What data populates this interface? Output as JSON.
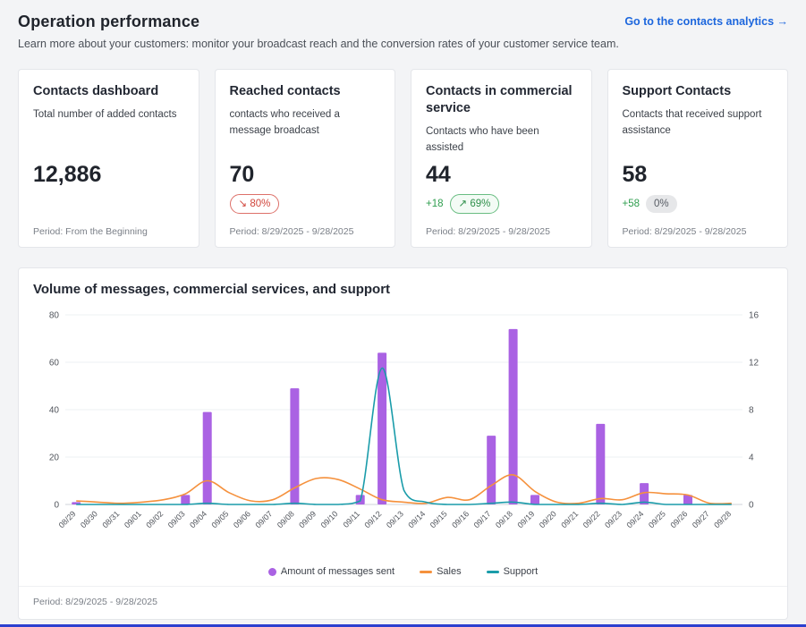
{
  "header": {
    "title": "Operation performance",
    "subtitle": "Learn more about your customers: monitor your broadcast reach and the conversion rates of your customer service team.",
    "link": "Go to the contacts analytics →"
  },
  "cards": [
    {
      "title": "Contacts dashboard",
      "description": "Total number of added contacts",
      "value": "12,886",
      "period": "Period: From the Beginning"
    },
    {
      "title": "Reached contacts",
      "description": "contacts who received a message broadcast",
      "value": "70",
      "badge": "↘ 80%",
      "period": "Period: 8/29/2025 - 9/28/2025"
    },
    {
      "title": "Contacts in commercial service",
      "description": "Contacts who have been assisted",
      "value": "44",
      "delta": "+18",
      "badge": "↗ 69%",
      "period": "Period: 8/29/2025 - 9/28/2025"
    },
    {
      "title": "Support Contacts",
      "description": "Contacts that received support assistance",
      "value": "58",
      "delta": "+58",
      "badge": "0%",
      "period": "Period: 8/29/2025 - 9/28/2025"
    }
  ],
  "chart_panel": {
    "title": "Volume of messages, commercial services, and support",
    "footer": "Period: 8/29/2025 - 9/28/2025"
  },
  "chart_data": {
    "type": "bar",
    "subtype": "combo-bar-line",
    "title": "Volume of messages, commercial services, and support",
    "categories": [
      "08/29",
      "08/30",
      "08/31",
      "09/01",
      "09/02",
      "09/03",
      "09/04",
      "09/05",
      "09/06",
      "09/07",
      "09/08",
      "09/09",
      "09/10",
      "09/11",
      "09/12",
      "09/13",
      "09/14",
      "09/15",
      "09/16",
      "09/17",
      "09/18",
      "09/19",
      "09/20",
      "09/21",
      "09/22",
      "09/23",
      "09/24",
      "09/25",
      "09/26",
      "09/27",
      "09/28"
    ],
    "series": [
      {
        "name": "Amount of messages sent",
        "type": "bar",
        "axis": "left",
        "color": "#aa62e3",
        "values": [
          1,
          0,
          0,
          0,
          0,
          4,
          39,
          0,
          0,
          0,
          49,
          0,
          0,
          4,
          64,
          0,
          0,
          0,
          0,
          29,
          74,
          4,
          0,
          0,
          34,
          0,
          9,
          0,
          4,
          0,
          0
        ]
      },
      {
        "name": "Sales",
        "type": "line",
        "axis": "right",
        "color": "#f5913d",
        "values": [
          0.3,
          0.2,
          0.1,
          0.2,
          0.4,
          0.9,
          2.0,
          1.0,
          0.3,
          0.4,
          1.4,
          2.2,
          2.1,
          1.3,
          0.4,
          0.2,
          0.1,
          0.6,
          0.4,
          1.6,
          2.5,
          1.1,
          0.2,
          0.1,
          0.5,
          0.4,
          1.0,
          0.9,
          0.8,
          0.1,
          0.1
        ]
      },
      {
        "name": "Support",
        "type": "line",
        "axis": "right",
        "color": "#1a9caa",
        "values": [
          0,
          0,
          0,
          0,
          0,
          0,
          0.1,
          0,
          0,
          0,
          0.1,
          0,
          0,
          0.3,
          11.5,
          1.2,
          0.2,
          0,
          0,
          0.1,
          0.2,
          0,
          0,
          0,
          0.1,
          0,
          0.2,
          0,
          0,
          0,
          0
        ]
      }
    ],
    "left_axis": {
      "ticks": [
        0,
        20,
        40,
        60,
        80
      ],
      "max": 80
    },
    "right_axis": {
      "ticks": [
        0,
        4,
        8,
        12,
        16
      ],
      "max": 16
    },
    "grid": true,
    "legend_position": "bottom"
  },
  "colors": {
    "accent_link": "#1c66dd",
    "bar_purple": "#aa62e3",
    "line_orange": "#f5913d",
    "line_teal": "#1a9caa",
    "badge_red": "#d1453b",
    "badge_green": "#2e8f4a",
    "bottom_bar": "#2c40cf"
  }
}
